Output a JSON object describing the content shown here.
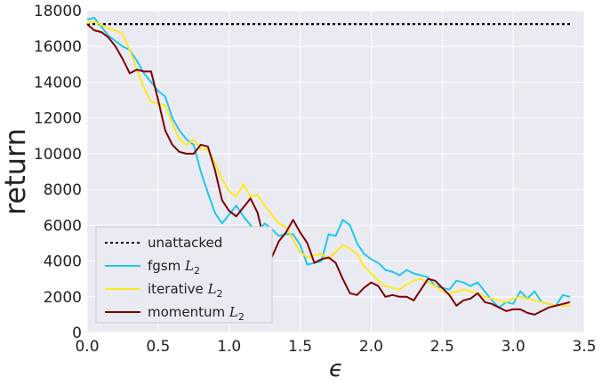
{
  "chart_data": {
    "type": "line",
    "title": "",
    "xlabel": "ϵ",
    "ylabel": "return",
    "xlim": [
      0,
      3.5
    ],
    "ylim": [
      0,
      18000
    ],
    "xticks": [
      "0.0",
      "0.5",
      "1.0",
      "1.5",
      "2.0",
      "2.5",
      "3.0",
      "3.5"
    ],
    "yticks": [
      "0",
      "2000",
      "4000",
      "6000",
      "8000",
      "10000",
      "12000",
      "14000",
      "16000",
      "18000"
    ],
    "grid": true,
    "legend_position": "lower-left",
    "background": "#eaeaf2",
    "series": [
      {
        "name": "unattacked",
        "legend_label": "unattacked",
        "legend_sub": "",
        "color": "#000000",
        "style": "dotted",
        "x": [
          0.0,
          3.4
        ],
        "y": [
          17250,
          17250
        ]
      },
      {
        "name": "fgsm L2",
        "legend_label": "fgsm ",
        "legend_sub": "2",
        "color": "#1ec8f0",
        "style": "solid",
        "x": [
          0.0,
          0.05,
          0.1,
          0.15,
          0.2,
          0.25,
          0.3,
          0.35,
          0.4,
          0.45,
          0.5,
          0.55,
          0.6,
          0.65,
          0.7,
          0.75,
          0.8,
          0.85,
          0.9,
          0.95,
          1.0,
          1.05,
          1.1,
          1.15,
          1.2,
          1.25,
          1.3,
          1.35,
          1.4,
          1.45,
          1.5,
          1.55,
          1.6,
          1.65,
          1.7,
          1.75,
          1.8,
          1.85,
          1.9,
          1.95,
          2.0,
          2.05,
          2.1,
          2.15,
          2.2,
          2.25,
          2.3,
          2.35,
          2.4,
          2.45,
          2.5,
          2.55,
          2.6,
          2.65,
          2.7,
          2.75,
          2.8,
          2.85,
          2.9,
          2.95,
          3.0,
          3.05,
          3.1,
          3.15,
          3.2,
          3.25,
          3.3,
          3.35,
          3.4
        ],
        "y": [
          17500,
          17600,
          17100,
          16600,
          16300,
          16000,
          15800,
          15200,
          14500,
          14000,
          13500,
          13200,
          12000,
          11300,
          10800,
          10500,
          9000,
          7800,
          6700,
          6100,
          6600,
          7100,
          6500,
          6000,
          5600,
          6100,
          5800,
          5400,
          5500,
          5500,
          4900,
          3800,
          3900,
          4000,
          5500,
          5400,
          6300,
          6000,
          5000,
          4400,
          4100,
          3900,
          3500,
          3400,
          3200,
          3500,
          3300,
          3200,
          3100,
          2600,
          2500,
          2400,
          2900,
          2800,
          2600,
          2800,
          2300,
          1800,
          1400,
          1700,
          1600,
          2300,
          1900,
          2300,
          1700,
          1600,
          1500,
          2100,
          2000
        ]
      },
      {
        "name": "iterative L2",
        "legend_label": "iterative ",
        "legend_sub": "2",
        "color": "#ffe81e",
        "style": "solid",
        "x": [
          0.0,
          0.05,
          0.1,
          0.15,
          0.2,
          0.25,
          0.3,
          0.35,
          0.4,
          0.45,
          0.5,
          0.55,
          0.6,
          0.65,
          0.7,
          0.75,
          0.8,
          0.85,
          0.9,
          0.95,
          1.0,
          1.05,
          1.1,
          1.15,
          1.2,
          1.25,
          1.3,
          1.35,
          1.4,
          1.45,
          1.5,
          1.55,
          1.6,
          1.65,
          1.7,
          1.75,
          1.8,
          1.85,
          1.9,
          1.95,
          2.0,
          2.05,
          2.1,
          2.15,
          2.2,
          2.25,
          2.3,
          2.35,
          2.4,
          2.45,
          2.5,
          2.55,
          2.6,
          2.65,
          2.7,
          2.75,
          2.8,
          2.85,
          2.9,
          2.95,
          3.0,
          3.05,
          3.1,
          3.15,
          3.2,
          3.25,
          3.3,
          3.35,
          3.4
        ],
        "y": [
          17300,
          17400,
          17200,
          17000,
          16900,
          16700,
          15800,
          14700,
          13700,
          12900,
          12800,
          12700,
          11700,
          10800,
          10500,
          10800,
          10300,
          10200,
          9500,
          8600,
          7900,
          7600,
          8300,
          7600,
          7700,
          7100,
          6600,
          6100,
          5900,
          5200,
          4500,
          4200,
          4300,
          4400,
          4100,
          4500,
          4900,
          4700,
          4400,
          3700,
          3300,
          2900,
          2600,
          2500,
          2400,
          2700,
          2900,
          3000,
          2800,
          2600,
          2300,
          2200,
          2300,
          2400,
          2300,
          2200,
          2000,
          1900,
          1800,
          1700,
          1900,
          2000,
          1900,
          1800,
          1700,
          1600,
          1500,
          1500,
          1500
        ]
      },
      {
        "name": "momentum L2",
        "legend_label": "momentum ",
        "legend_sub": "2",
        "color": "#7f0000",
        "style": "solid",
        "x": [
          0.0,
          0.05,
          0.1,
          0.15,
          0.2,
          0.25,
          0.3,
          0.35,
          0.4,
          0.45,
          0.5,
          0.55,
          0.6,
          0.65,
          0.7,
          0.75,
          0.8,
          0.85,
          0.9,
          0.95,
          1.0,
          1.05,
          1.1,
          1.15,
          1.2,
          1.25,
          1.3,
          1.35,
          1.4,
          1.45,
          1.5,
          1.55,
          1.6,
          1.65,
          1.7,
          1.75,
          1.8,
          1.85,
          1.9,
          1.95,
          2.0,
          2.05,
          2.1,
          2.15,
          2.2,
          2.25,
          2.3,
          2.35,
          2.4,
          2.45,
          2.5,
          2.55,
          2.6,
          2.65,
          2.7,
          2.75,
          2.8,
          2.85,
          2.9,
          2.95,
          3.0,
          3.05,
          3.1,
          3.15,
          3.2,
          3.25,
          3.3,
          3.35,
          3.4
        ],
        "y": [
          17250,
          16900,
          16800,
          16500,
          16000,
          15300,
          14500,
          14700,
          14600,
          14600,
          13000,
          11300,
          10500,
          10100,
          10000,
          10000,
          10500,
          10400,
          9100,
          7400,
          6800,
          6500,
          7000,
          7500,
          6700,
          5000,
          4200,
          5100,
          5600,
          6300,
          5600,
          5000,
          3900,
          4100,
          4200,
          3900,
          3000,
          2200,
          2100,
          2500,
          2800,
          2600,
          2000,
          2100,
          2000,
          2000,
          1800,
          2400,
          3000,
          2900,
          2500,
          2100,
          1500,
          1800,
          1900,
          2200,
          1700,
          1600,
          1400,
          1200,
          1300,
          1300,
          1100,
          1000,
          1200,
          1400,
          1500,
          1600,
          1700
        ]
      }
    ]
  }
}
